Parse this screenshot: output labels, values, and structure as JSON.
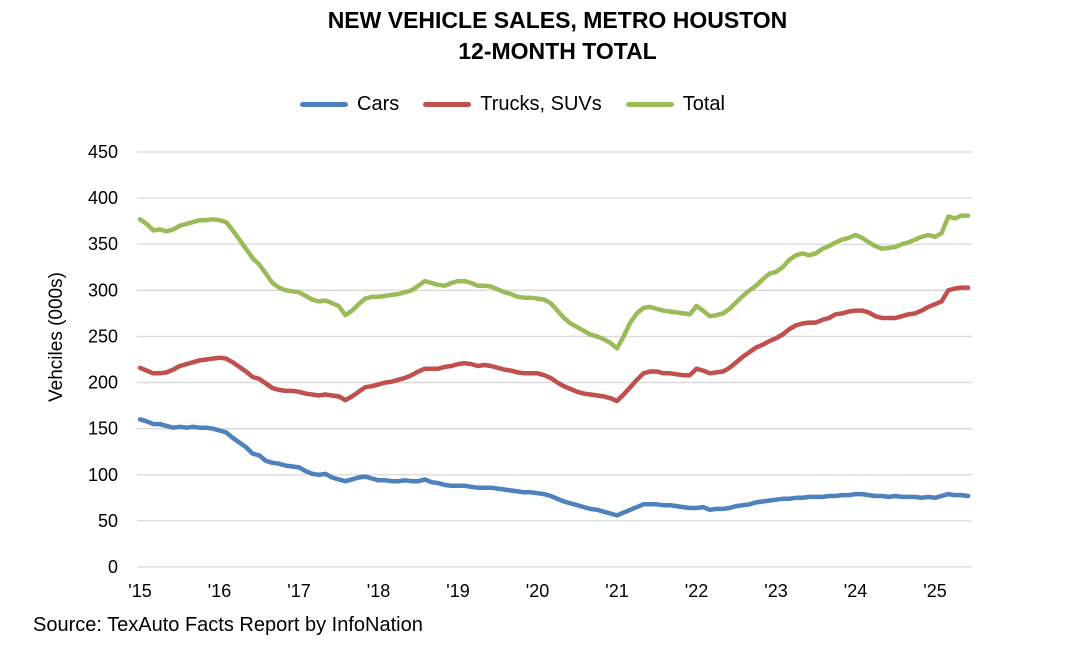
{
  "chart_data": {
    "type": "line",
    "title": "NEW VEHICLE SALES, METRO HOUSTON",
    "subtitle": "12-MONTH TOTAL",
    "xlabel": "",
    "ylabel": "Vehciles (000s)",
    "ylim": [
      0,
      450
    ],
    "yticks": [
      0,
      50,
      100,
      150,
      200,
      250,
      300,
      350,
      400,
      450
    ],
    "xlim": [
      2015,
      2025.45
    ],
    "xticks": [
      2015,
      2016,
      2017,
      2018,
      2019,
      2020,
      2021,
      2022,
      2023,
      2024,
      2025
    ],
    "xtick_labels": [
      "'15",
      "'16",
      "'17",
      "'18",
      "'19",
      "'20",
      "'21",
      "'22",
      "'23",
      "'24",
      "'25"
    ],
    "grid": "horizontal",
    "legend_position": "top-center",
    "x_start": "Jan 2015",
    "x_frequency": "monthly",
    "series": [
      {
        "name": "Cars",
        "color": "#4F81BD",
        "values": [
          160,
          158,
          155,
          155,
          153,
          151,
          152,
          151,
          152,
          151,
          151,
          150,
          148,
          146,
          140,
          135,
          130,
          123,
          121,
          115,
          113,
          112,
          110,
          109,
          108,
          104,
          101,
          100,
          101,
          97,
          95,
          93,
          95,
          97,
          98,
          96,
          94,
          94,
          93,
          93,
          94,
          93,
          93,
          95,
          92,
          91,
          89,
          88,
          88,
          88,
          87,
          86,
          86,
          86,
          85,
          84,
          83,
          82,
          81,
          81,
          80,
          79,
          77,
          74,
          71,
          69,
          67,
          65,
          63,
          62,
          60,
          58,
          56,
          59,
          62,
          65,
          68,
          68,
          68,
          67,
          67,
          66,
          65,
          64,
          64,
          65,
          62,
          63,
          63,
          64,
          66,
          67,
          68,
          70,
          71,
          72,
          73,
          74,
          74,
          75,
          75,
          76,
          76,
          76,
          77,
          77,
          78,
          78,
          79,
          79,
          78,
          77,
          77,
          76,
          77,
          76,
          76,
          76,
          75,
          76,
          75,
          77,
          79,
          78,
          78,
          77
        ]
      },
      {
        "name": "Trucks, SUVs",
        "color": "#C0504D",
        "values": [
          216,
          213,
          210,
          210,
          211,
          214,
          218,
          220,
          222,
          224,
          225,
          226,
          227,
          226,
          222,
          217,
          212,
          206,
          204,
          199,
          194,
          192,
          191,
          191,
          190,
          188,
          187,
          186,
          187,
          186,
          185,
          181,
          185,
          190,
          195,
          196,
          198,
          200,
          201,
          203,
          205,
          208,
          212,
          215,
          215,
          215,
          217,
          218,
          220,
          221,
          220,
          218,
          219,
          218,
          216,
          214,
          213,
          211,
          210,
          210,
          210,
          208,
          205,
          200,
          196,
          193,
          190,
          188,
          187,
          186,
          185,
          183,
          180,
          187,
          195,
          203,
          210,
          212,
          212,
          210,
          210,
          209,
          208,
          208,
          215,
          213,
          210,
          211,
          212,
          216,
          222,
          228,
          233,
          238,
          241,
          245,
          248,
          252,
          258,
          262,
          264,
          265,
          265,
          268,
          270,
          274,
          275,
          277,
          278,
          278,
          276,
          272,
          270,
          270,
          270,
          272,
          274,
          275,
          278,
          282,
          285,
          288,
          300,
          302,
          303,
          303
        ]
      },
      {
        "name": "Total",
        "color": "#9BBB59",
        "values": [
          377,
          372,
          365,
          366,
          364,
          366,
          370,
          372,
          374,
          376,
          376,
          377,
          376,
          374,
          365,
          355,
          345,
          335,
          328,
          318,
          308,
          303,
          300,
          299,
          298,
          294,
          290,
          288,
          289,
          286,
          283,
          273,
          278,
          285,
          291,
          293,
          293,
          294,
          295,
          296,
          298,
          300,
          305,
          310,
          308,
          306,
          305,
          308,
          310,
          310,
          308,
          305,
          305,
          304,
          301,
          298,
          296,
          293,
          292,
          292,
          291,
          290,
          286,
          278,
          270,
          264,
          260,
          256,
          252,
          250,
          247,
          243,
          237,
          250,
          265,
          275,
          281,
          282,
          280,
          278,
          277,
          276,
          275,
          274,
          283,
          278,
          272,
          273,
          275,
          280,
          287,
          294,
          300,
          305,
          312,
          318,
          320,
          325,
          333,
          338,
          340,
          338,
          340,
          345,
          348,
          352,
          355,
          357,
          360,
          357,
          352,
          348,
          345,
          346,
          347,
          350,
          352,
          355,
          358,
          360,
          358,
          362,
          380,
          378,
          381,
          381
        ]
      }
    ],
    "source": "Source: TexAuto Facts Report by InfoNation"
  },
  "legend": [
    {
      "label": "Cars",
      "color": "#4F81BD"
    },
    {
      "label": "Trucks, SUVs",
      "color": "#C0504D"
    },
    {
      "label": "Total",
      "color": "#9BBB59"
    }
  ]
}
